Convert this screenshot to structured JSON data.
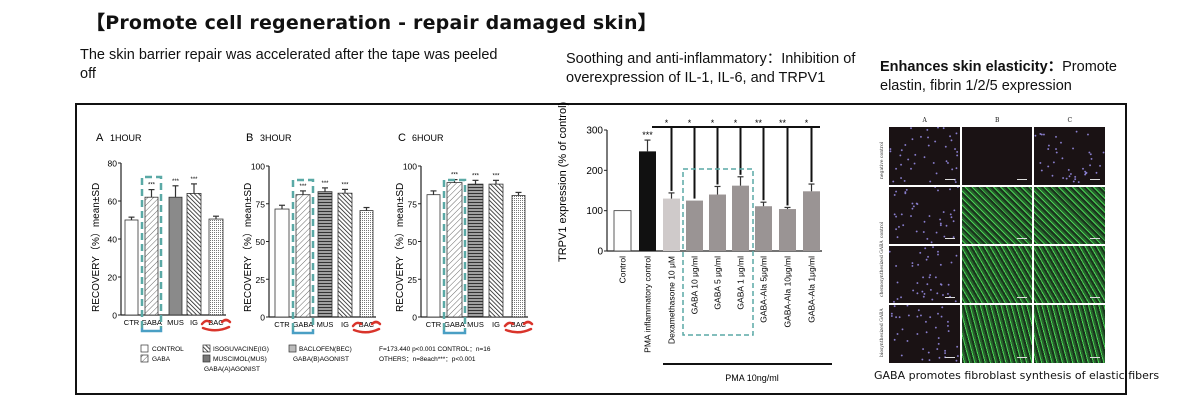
{
  "title": "【Promote cell regeneration - repair damaged skin】",
  "sections": [
    {
      "heading": "",
      "text": "The skin barrier repair was accelerated after the tape was peeled off"
    },
    {
      "heading": "",
      "text": "Soothing and anti-inflammatory：Inhibition of overexpression of IL-1, IL-6, and TRPV1"
    },
    {
      "heading": "Enhances skin elasticity：",
      "text": "Promote elastin, fibrin 1/2/5 expression"
    }
  ],
  "colors": {
    "highlight_box": "#5aa9a6",
    "category_box": "#4a9fc4",
    "bac_mark": "#d9342b",
    "fluorescence": "#3fcf4a"
  },
  "chart_data": [
    {
      "type": "bar",
      "panel": "A",
      "title": "1HOUR",
      "ylabel": "RECOVERY（%）mean±SD",
      "ylim": [
        0,
        80
      ],
      "yticks": [
        "0",
        "20",
        "40",
        "60",
        "80"
      ],
      "categories": [
        "CTR",
        "GABA",
        "MUS",
        "IG",
        "BAC"
      ],
      "values": [
        50,
        62,
        62,
        64,
        50.5
      ],
      "errors": [
        1.5,
        4,
        6,
        5,
        1.5
      ],
      "significance": [
        "",
        "***",
        "***",
        "***",
        ""
      ],
      "grid": false
    },
    {
      "type": "bar",
      "panel": "B",
      "title": "3HOUR",
      "ylabel": "RECOVERY（%）mean±SD",
      "ylim": [
        0,
        100
      ],
      "yticks": [
        "0",
        "25",
        "50",
        "75",
        "100"
      ],
      "categories": [
        "CTR",
        "GABA",
        "MUS",
        "IG",
        "BAC"
      ],
      "values": [
        71.5,
        81,
        83,
        82,
        70.5
      ],
      "errors": [
        2.5,
        2.5,
        2.5,
        2.5,
        2
      ],
      "significance": [
        "",
        "***",
        "***",
        "***",
        ""
      ],
      "grid": false
    },
    {
      "type": "bar",
      "panel": "C",
      "title": "6HOUR",
      "ylabel": "RECOVERY（%）mean±SD",
      "ylim": [
        0,
        100
      ],
      "yticks": [
        "0",
        "25",
        "50",
        "75",
        "100"
      ],
      "categories": [
        "CTR",
        "GABA",
        "MUS",
        "IG",
        "BAC"
      ],
      "values": [
        81,
        89,
        88,
        88,
        80.5
      ],
      "errors": [
        2.5,
        2,
        2.5,
        2.5,
        2
      ],
      "significance": [
        "",
        "***",
        "***",
        "***",
        ""
      ],
      "grid": false
    },
    {
      "type": "bar",
      "title": "",
      "ylabel": "TRPV1 expression (% of control)",
      "ylim": [
        0,
        300
      ],
      "yticks": [
        "0",
        "100",
        "200",
        "300"
      ],
      "categories": [
        "Control",
        "PMA inflammatory control",
        "Dexamethasone 10 μM",
        "GABA 10 μg/ml",
        "GABA 5 μg/ml",
        "GABA 1 μg/ml",
        "GABA-Ala 5μg/ml",
        "GABA-Ala 10μg/ml",
        "GABA-Ala 1μg/ml"
      ],
      "values": [
        100,
        247,
        130,
        125,
        140,
        162,
        111,
        104,
        148
      ],
      "errors": [
        0,
        28,
        14,
        0,
        20,
        22,
        10,
        4,
        18
      ],
      "significance": [
        "",
        "***",
        "*",
        "*",
        "*",
        "*",
        "**",
        "**",
        "*"
      ],
      "bar_colors": [
        "#ffffff",
        "#111111",
        "#cfcaca",
        "#9a9494",
        "#9a9494",
        "#9a9494",
        "#9a9494",
        "#9a9494",
        "#9a9494"
      ],
      "group_label": "PMA  10ng/ml",
      "grid": false
    }
  ],
  "legend": {
    "items": [
      "CONTROL",
      "GABA",
      "ISOGUVACINE(IG)",
      "MUSCIMOL(MUS)",
      "BACLOFEN(BEC)"
    ],
    "group_a": "GABA(A)AGONIST",
    "group_b": "GABA(B)AGONIST",
    "stats_line1": "F=173.440   p<0.001   CONTROL：n=16",
    "stats_line2": "OTHERS：n=8each***：p<0.001"
  },
  "image_grid": {
    "columns": [
      "A",
      "B",
      "C"
    ],
    "rows": [
      "negative control",
      "control",
      "chemosynthesized GABA",
      "biosynthesized GABA"
    ],
    "green_cells": [
      [
        false,
        false,
        false
      ],
      [
        false,
        true,
        true
      ],
      [
        false,
        true,
        true
      ],
      [
        false,
        true,
        true
      ]
    ],
    "caption": "GABA promotes fibroblast synthesis of elastic fibers"
  }
}
